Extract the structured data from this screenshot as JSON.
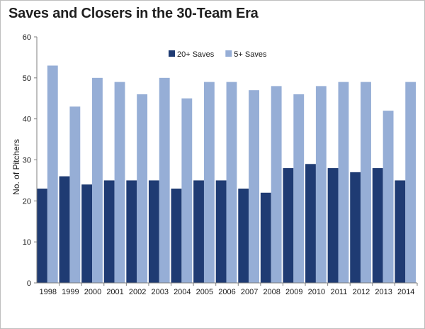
{
  "chart_data": {
    "type": "bar",
    "title": "Saves and Closers in the 30-Team Era",
    "xlabel": "",
    "ylabel": "No. of Pitchers",
    "ylim": [
      0,
      60
    ],
    "yticks": [
      0,
      10,
      20,
      30,
      40,
      50,
      60
    ],
    "grid": false,
    "legend_position": "top-center",
    "categories": [
      "1998",
      "1999",
      "2000",
      "2001",
      "2002",
      "2003",
      "2004",
      "2005",
      "2006",
      "2007",
      "2008",
      "2009",
      "2010",
      "2011",
      "2012",
      "2013",
      "2014"
    ],
    "series": [
      {
        "name": "20+ Saves",
        "color": "#1f3b73",
        "values": [
          23,
          26,
          24,
          25,
          25,
          25,
          23,
          25,
          25,
          23,
          22,
          28,
          29,
          28,
          27,
          28,
          25
        ]
      },
      {
        "name": "5+ Saves",
        "color": "#96aed6",
        "values": [
          53,
          43,
          50,
          49,
          46,
          50,
          45,
          49,
          49,
          47,
          48,
          46,
          48,
          49,
          49,
          42,
          49
        ]
      }
    ]
  }
}
